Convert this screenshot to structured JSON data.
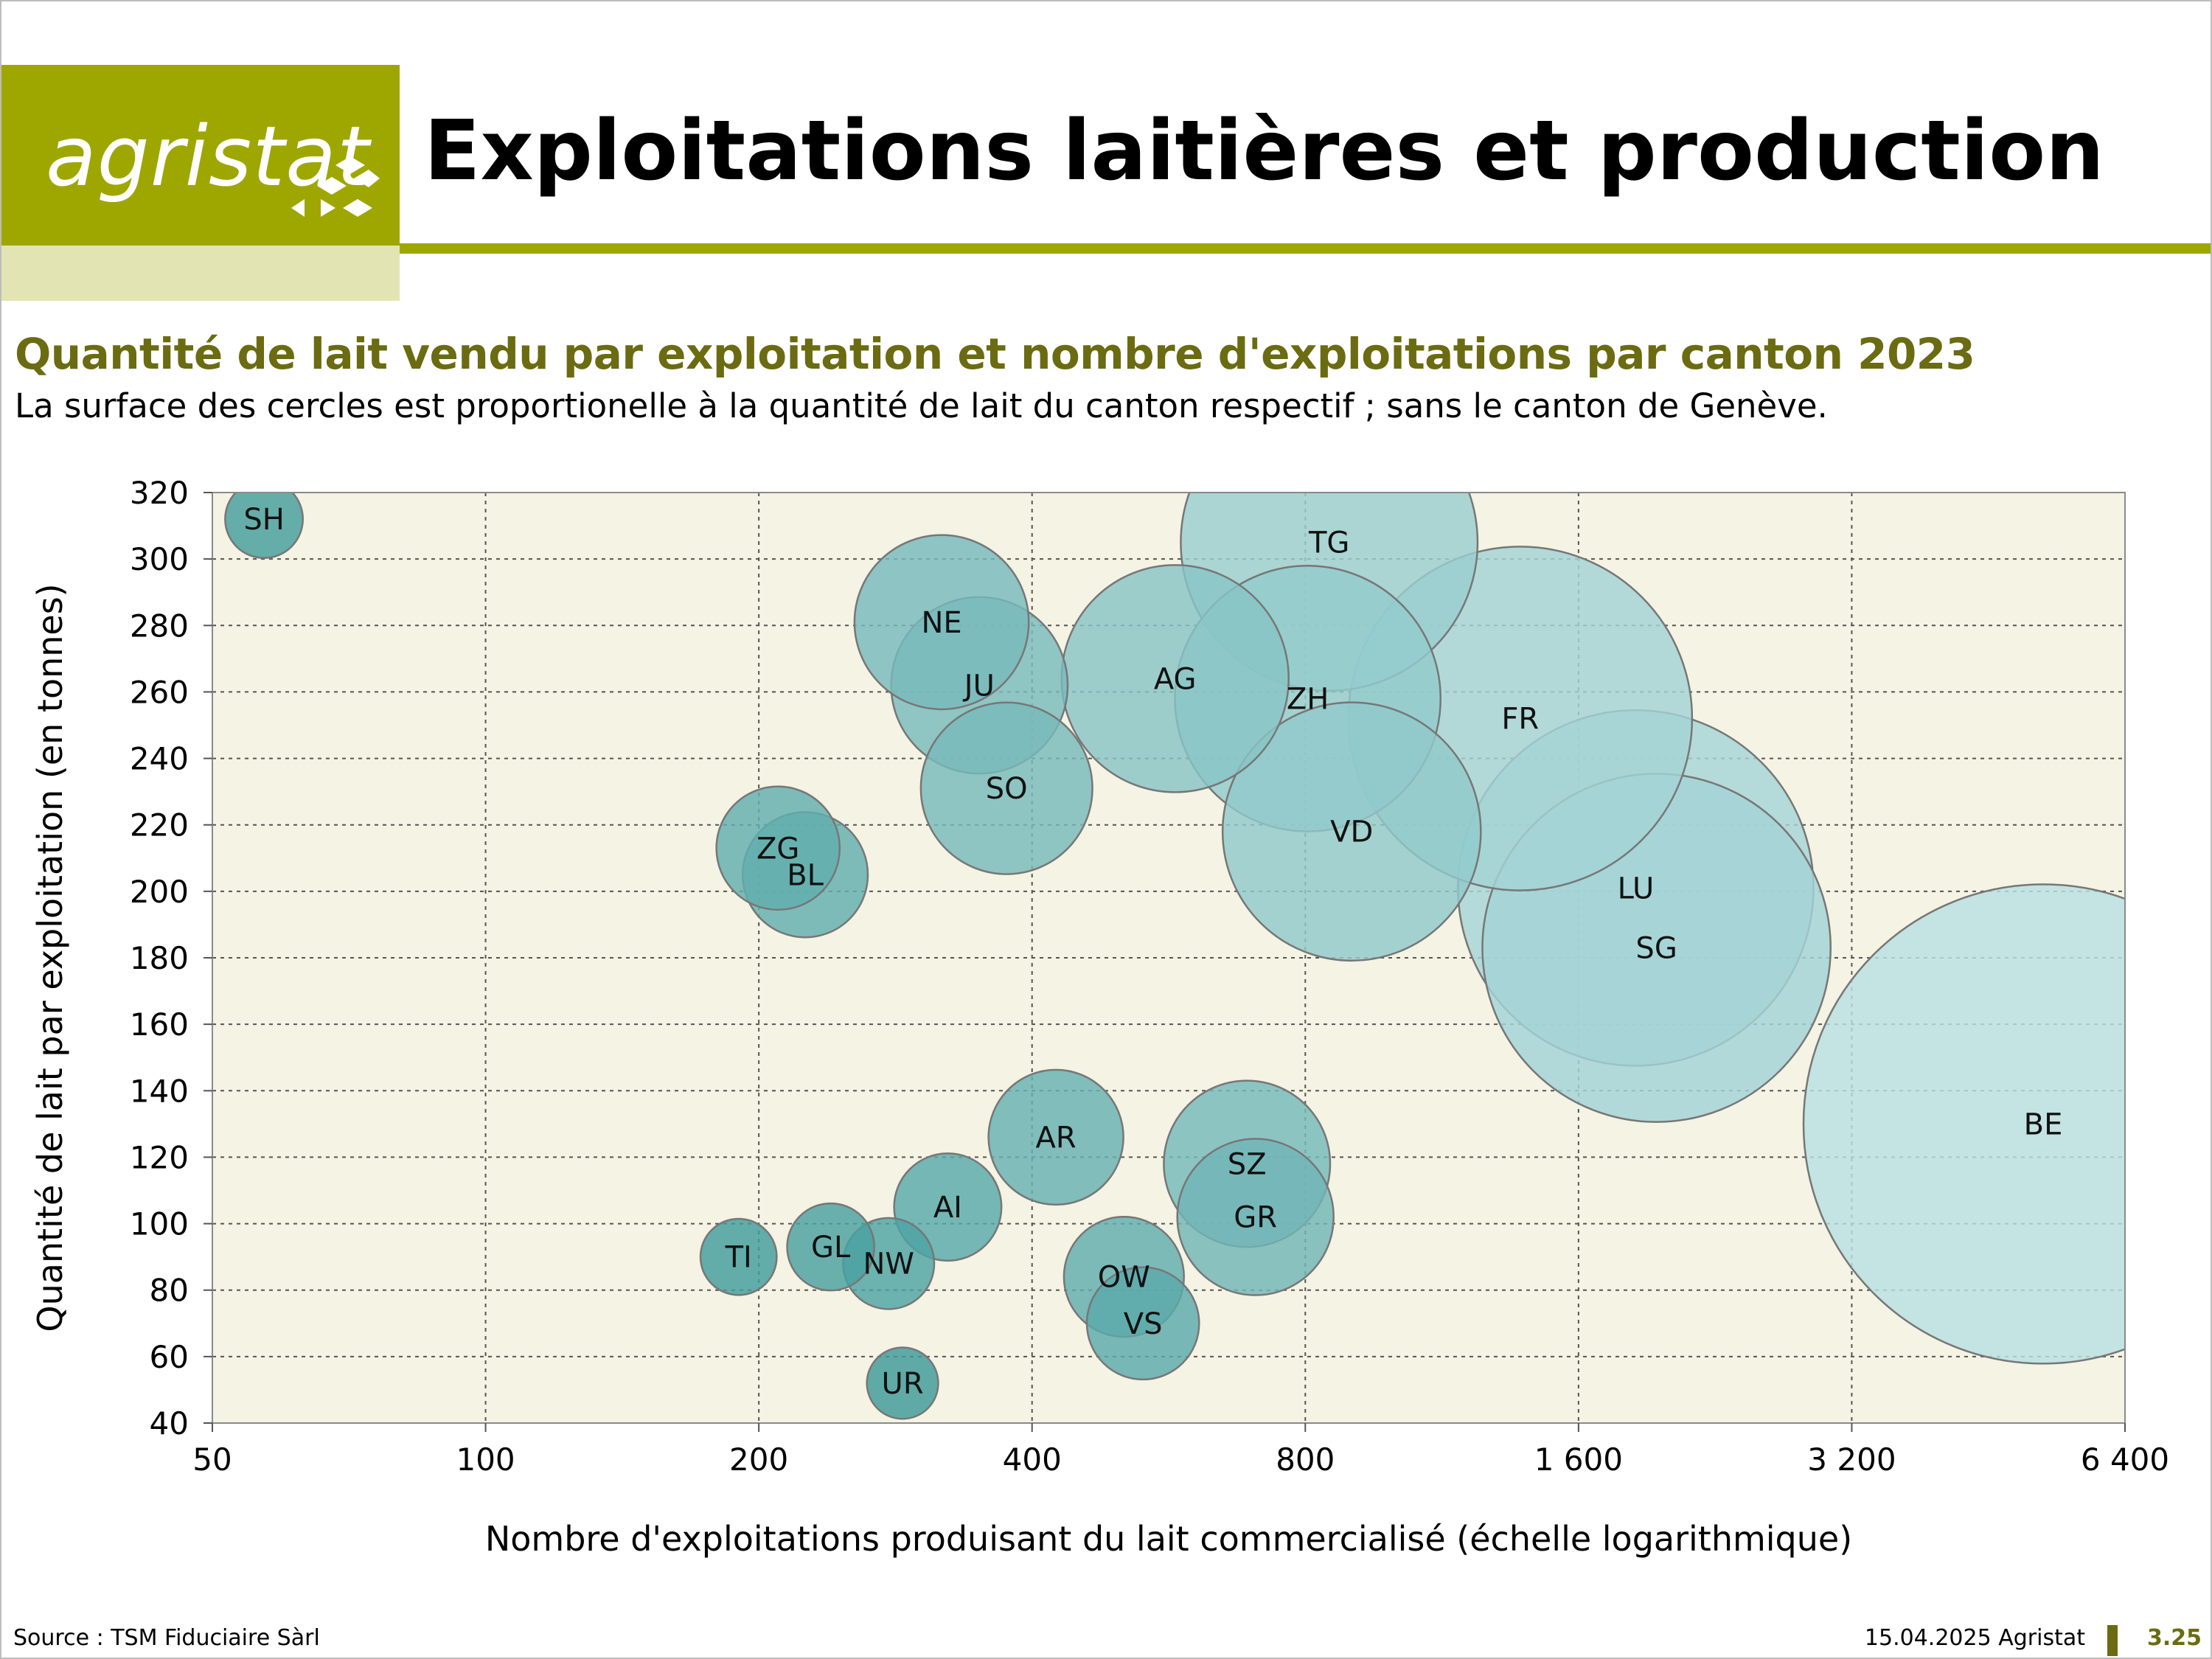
{
  "header": {
    "logo_text": "agristat",
    "title": "Exploitations laitières et production"
  },
  "subtitle": "Quantité de lait vendu par exploitation et nombre d'exploitations par canton 2023",
  "note": "La surface des cercles est proportionelle à la quantité de lait du canton respectif ; sans le canton de Genève.",
  "footer": {
    "source": "Source : TSM Fiduciaire Sàrl",
    "date": "15.04.2025 Agristat",
    "page": "3.25"
  },
  "colors": {
    "brand": "#9ea700",
    "brand_light": "#e2e5b3",
    "subtitle": "#6b6b12",
    "plot_bg": "#f4f3e4",
    "bubble_dark": "#3e9a99",
    "bubble_light": "#b9dfe3"
  },
  "chart_data": {
    "type": "scatter",
    "bubble": true,
    "xlabel": "Nombre d'exploitations produisant du lait commercialisé (échelle logarithmique)",
    "ylabel": "Quantité de lait par exploitation (en tonnes)",
    "x_scale": "log",
    "xlim": [
      50,
      6400
    ],
    "ylim": [
      40,
      320
    ],
    "x_ticks": [
      50,
      100,
      200,
      400,
      800,
      1600,
      3200,
      6400
    ],
    "x_tick_labels": [
      "50",
      "100",
      "200",
      "400",
      "800",
      "1 600",
      "3 200",
      "6 400"
    ],
    "y_ticks": [
      40,
      60,
      80,
      100,
      120,
      140,
      160,
      180,
      200,
      220,
      240,
      260,
      280,
      300,
      320
    ],
    "grid": true,
    "points": [
      {
        "label": "BE",
        "x": 5200,
        "y": 130
      },
      {
        "label": "SG",
        "x": 1950,
        "y": 183
      },
      {
        "label": "LU",
        "x": 1850,
        "y": 201
      },
      {
        "label": "FR",
        "x": 1380,
        "y": 252
      },
      {
        "label": "VD",
        "x": 900,
        "y": 218
      },
      {
        "label": "ZH",
        "x": 805,
        "y": 258
      },
      {
        "label": "TG",
        "x": 850,
        "y": 305
      },
      {
        "label": "AG",
        "x": 575,
        "y": 264
      },
      {
        "label": "SO",
        "x": 375,
        "y": 231
      },
      {
        "label": "JU",
        "x": 350,
        "y": 262
      },
      {
        "label": "NE",
        "x": 318,
        "y": 281
      },
      {
        "label": "ZG",
        "x": 210,
        "y": 213
      },
      {
        "label": "BL",
        "x": 225,
        "y": 205
      },
      {
        "label": "SH",
        "x": 57,
        "y": 312
      },
      {
        "label": "AR",
        "x": 425,
        "y": 126
      },
      {
        "label": "SZ",
        "x": 690,
        "y": 118
      },
      {
        "label": "GR",
        "x": 705,
        "y": 102
      },
      {
        "label": "AI",
        "x": 323,
        "y": 105
      },
      {
        "label": "OW",
        "x": 505,
        "y": 84
      },
      {
        "label": "VS",
        "x": 530,
        "y": 70
      },
      {
        "label": "TI",
        "x": 190,
        "y": 90
      },
      {
        "label": "GL",
        "x": 240,
        "y": 93
      },
      {
        "label": "NW",
        "x": 278,
        "y": 88
      },
      {
        "label": "UR",
        "x": 288,
        "y": 52
      }
    ]
  }
}
